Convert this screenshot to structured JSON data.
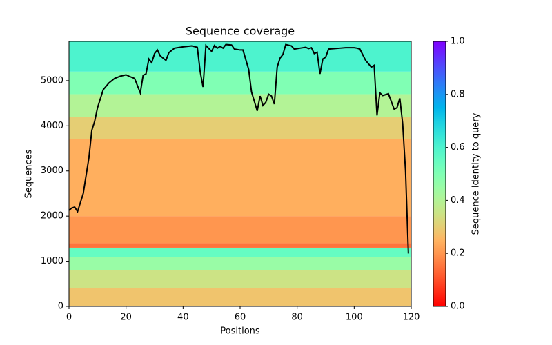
{
  "chart_data": {
    "type": "coverage",
    "title": "Sequence coverage",
    "x_label": "Positions",
    "y_label": "Sequences",
    "colorbar_label": "Sequence identity to query",
    "colormap": "rainbow_r",
    "xlim": [
      0,
      120
    ],
    "xticks": [
      0,
      20,
      40,
      60,
      80,
      100,
      120
    ],
    "ylim": [
      0,
      5870
    ],
    "yticks": [
      0,
      1000,
      2000,
      3000,
      4000,
      5000
    ],
    "clim": [
      0,
      1
    ],
    "cticks": [
      {
        "value": 0,
        "label": "0.0"
      },
      0.2,
      0.4,
      0.6,
      0.8,
      {
        "value": 1,
        "label": "1.0"
      }
    ],
    "bands": [
      {
        "y0": 0,
        "y1": 400,
        "identity": 0.28
      },
      {
        "y0": 400,
        "y1": 800,
        "identity": 0.35
      },
      {
        "y0": 800,
        "y1": 1100,
        "identity": 0.45
      },
      {
        "y0": 1100,
        "y1": 1300,
        "identity": 0.55
      },
      {
        "y0": 1300,
        "y1": 1400,
        "identity": 0.15
      },
      {
        "y0": 1400,
        "y1": 2000,
        "identity": 0.2
      },
      {
        "y0": 2000,
        "y1": 3700,
        "identity": 0.24
      },
      {
        "y0": 3700,
        "y1": 4200,
        "identity": 0.3
      },
      {
        "y0": 4200,
        "y1": 4700,
        "identity": 0.4
      },
      {
        "y0": 4700,
        "y1": 5200,
        "identity": 0.5
      },
      {
        "y0": 5200,
        "y1": 5870,
        "identity": 0.6
      }
    ],
    "line_color": "#000000",
    "x": [
      0,
      1,
      2,
      3,
      5,
      7,
      8,
      9,
      10,
      12,
      14,
      16,
      18,
      20,
      21,
      23,
      25,
      26,
      27,
      28,
      29,
      30,
      31,
      32,
      34,
      35,
      37,
      40,
      43,
      45,
      46,
      47,
      48,
      50,
      51,
      52,
      53,
      54,
      55,
      57,
      58,
      60,
      61,
      63,
      64,
      66,
      67,
      68,
      69,
      70,
      71,
      72,
      73,
      74,
      75,
      76,
      78,
      79,
      81,
      83,
      84,
      85,
      86,
      87,
      88,
      89,
      90,
      91,
      95,
      97,
      100,
      101,
      102,
      104,
      106,
      107,
      108,
      109,
      110,
      112,
      114,
      115,
      116,
      117,
      118,
      119
    ],
    "values": [
      2130,
      2180,
      2200,
      2100,
      2500,
      3300,
      3900,
      4100,
      4400,
      4800,
      4950,
      5050,
      5100,
      5130,
      5100,
      5050,
      4730,
      5120,
      5150,
      5480,
      5400,
      5600,
      5680,
      5550,
      5450,
      5620,
      5720,
      5750,
      5770,
      5740,
      5200,
      4860,
      5780,
      5650,
      5780,
      5720,
      5760,
      5720,
      5800,
      5790,
      5700,
      5680,
      5680,
      5250,
      4750,
      4330,
      4660,
      4450,
      4520,
      4700,
      4660,
      4480,
      5300,
      5500,
      5580,
      5800,
      5770,
      5700,
      5720,
      5740,
      5710,
      5730,
      5600,
      5630,
      5150,
      5480,
      5520,
      5700,
      5720,
      5730,
      5730,
      5720,
      5700,
      5450,
      5300,
      5340,
      4230,
      4730,
      4670,
      4710,
      4370,
      4400,
      4610,
      4050,
      3000,
      1170
    ]
  }
}
